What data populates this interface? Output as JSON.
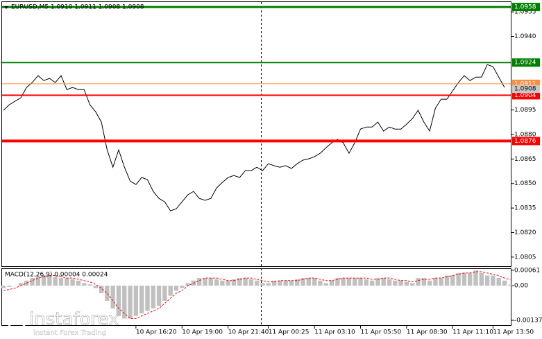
{
  "chart_data": [
    {
      "type": "line",
      "title": "EURUSD,M5  1.0910 1.0911 1.0908 1.0908",
      "series": [
        {
          "name": "EURUSD",
          "color": "#000000",
          "values": [
            1.08948,
            1.08982,
            1.09003,
            1.09024,
            1.09088,
            1.09118,
            1.0916,
            1.0913,
            1.09143,
            1.09118,
            1.0916,
            1.09075,
            1.09088,
            1.09075,
            1.09075,
            1.08982,
            1.08939,
            1.08876,
            1.08706,
            1.086,
            1.08706,
            1.086,
            1.08515,
            1.08494,
            1.08537,
            1.08524,
            1.08452,
            1.08409,
            1.08388,
            1.08333,
            1.08346,
            1.08388,
            1.08431,
            1.08452,
            1.08409,
            1.08397,
            1.08409,
            1.08473,
            1.08507,
            1.08537,
            1.08549,
            1.08537,
            1.08579,
            1.08579,
            1.086,
            1.08579,
            1.08621,
            1.08609,
            1.086,
            1.08609,
            1.08592,
            1.08621,
            1.08643,
            1.08651,
            1.08664,
            1.08685,
            1.08719,
            1.08749,
            1.0877,
            1.08749,
            1.08685,
            1.08749,
            1.08833,
            1.08846,
            1.08846,
            1.08876,
            1.08821,
            1.08846,
            1.08833,
            1.08833,
            1.08863,
            1.08897,
            1.08948,
            1.08876,
            1.08821,
            1.08961,
            1.09016,
            1.09016,
            1.09067,
            1.09118,
            1.0916,
            1.0913,
            1.09151,
            1.09151,
            1.09228,
            1.09215,
            1.09151,
            1.09088
          ]
        }
      ],
      "ylim": [
        1.0799,
        1.0961
      ],
      "yticks": [
        1.0955,
        {
          "value": 1.094,
          "label": "1.0940"
        },
        1.0895,
        {
          "value": 1.088,
          "label": "1.0880"
        },
        1.0865,
        {
          "value": 1.085,
          "label": "1.0850"
        },
        1.0835,
        {
          "value": 1.082,
          "label": "1.0820"
        },
        1.0805
      ],
      "xticks": [
        {
          "value": 23,
          "label": "10 Apr 16:20"
        },
        {
          "value": 31,
          "label": "10 Apr 19:00"
        },
        {
          "value": 39,
          "label": "10 Apr 21:40"
        },
        {
          "value": 46,
          "label": "11 Apr 00:25"
        },
        {
          "value": 54,
          "label": "11 Apr 03:10"
        },
        {
          "value": 62,
          "label": "11 Apr 05:50"
        },
        {
          "value": 70,
          "label": "11 Apr 08:30"
        },
        {
          "value": 78,
          "label": "11 Apr 11:10"
        },
        {
          "value": 85,
          "label": "11 Apr 13:50"
        }
      ],
      "levels": [
        {
          "value": 1.0958,
          "color": "#008000"
        },
        {
          "value": 1.0924,
          "color": "#008000"
        },
        {
          "value": 1.0911,
          "color": "#ff8c40"
        },
        {
          "value": 1.0904,
          "color": "#ff0000"
        },
        {
          "value": 1.0876,
          "color": "#ff0000"
        }
      ],
      "last_price": 1.0908
    },
    {
      "type": "macd",
      "title": "MACD(12,26,9) 0.00004 0.00024",
      "series": [
        {
          "name": "MACD",
          "color": "#c0c0c0",
          "values": [
            -0.0001,
            -5e-05,
            0,
            0.0001,
            0.0002,
            0.0003,
            0.00035,
            0.0004,
            0.0004,
            0.00035,
            0.0003,
            0.0003,
            0.00025,
            0.0002,
            0.0001,
            5e-05,
            -0.0001,
            -0.0003,
            -0.0006,
            -0.0009,
            -0.0012,
            -0.0013,
            -0.0013,
            -0.0012,
            -0.0011,
            -0.001,
            -0.0009,
            -0.0008,
            -0.0006,
            -0.0004,
            -0.0002,
            -0.0001,
            0.0001,
            0.0002,
            0.0003,
            0.0003,
            0.0003,
            0.00025,
            0.0002,
            0.0002,
            0.00025,
            0.0003,
            0.0003,
            0.00025,
            0.0002,
            0.0001,
            0.0001,
            0.0002,
            0.0002,
            0.0002,
            0.0002,
            0.00025,
            0.0003,
            0.0003,
            0.0003,
            0.0002,
            0.0001,
            0.0002,
            0.0003,
            0.0003,
            0.0003,
            0.0003,
            0.0003,
            0.00025,
            0.0002,
            0.0003,
            0.0003,
            0.00025,
            0.0002,
            0.0002,
            0.00015,
            0.0001,
            0.0003,
            0.0003,
            0.0002,
            0.0003,
            0.0003,
            0.0004,
            0.0004,
            0.0005,
            0.0005,
            0.0005,
            0.0006,
            0.0005,
            0.0004,
            0.0004,
            0.0003,
            0.0002,
            4e-05
          ]
        },
        {
          "name": "Signal",
          "color": "#ff0000",
          "values": [
            -0.0002,
            -0.00015,
            -0.0001,
            0,
            0.0001,
            0.0002,
            0.0003,
            0.00035,
            0.0004,
            0.0004,
            0.00035,
            0.0003,
            0.0003,
            0.00025,
            0.0002,
            0.00015,
            5e-05,
            -0.0001,
            -0.0003,
            -0.0006,
            -0.0009,
            -0.0011,
            -0.0013,
            -0.0013,
            -0.0012,
            -0.0011,
            -0.001,
            -0.0009,
            -0.0007,
            -0.0005,
            -0.0003,
            -0.0002,
            0,
            0.0001,
            0.0002,
            0.0003,
            0.0003,
            0.0003,
            0.00025,
            0.0002,
            0.0002,
            0.00025,
            0.0003,
            0.0003,
            0.00025,
            0.0002,
            0.00015,
            0.00015,
            0.0002,
            0.0002,
            0.0002,
            0.0002,
            0.00025,
            0.0003,
            0.0003,
            0.00025,
            0.0002,
            0.0002,
            0.00025,
            0.0003,
            0.0003,
            0.0003,
            0.0003,
            0.0003,
            0.00025,
            0.00025,
            0.0003,
            0.0003,
            0.00025,
            0.0002,
            0.0002,
            0.00015,
            0.0002,
            0.00025,
            0.00025,
            0.0003,
            0.0003,
            0.00035,
            0.0004,
            0.00045,
            0.0005,
            0.0005,
            0.00055,
            0.00055,
            0.0005,
            0.00045,
            0.0004,
            0.0003,
            0.00024
          ]
        }
      ],
      "ylim": [
        -0.00159,
        0.00066
      ],
      "yticks": [
        0.00061,
        {
          "value": 0,
          "label": "0.00"
        },
        -0.00137
      ]
    }
  ],
  "watermark": {
    "brand": "instaforex",
    "tagline": "Instant Forex Trading"
  }
}
